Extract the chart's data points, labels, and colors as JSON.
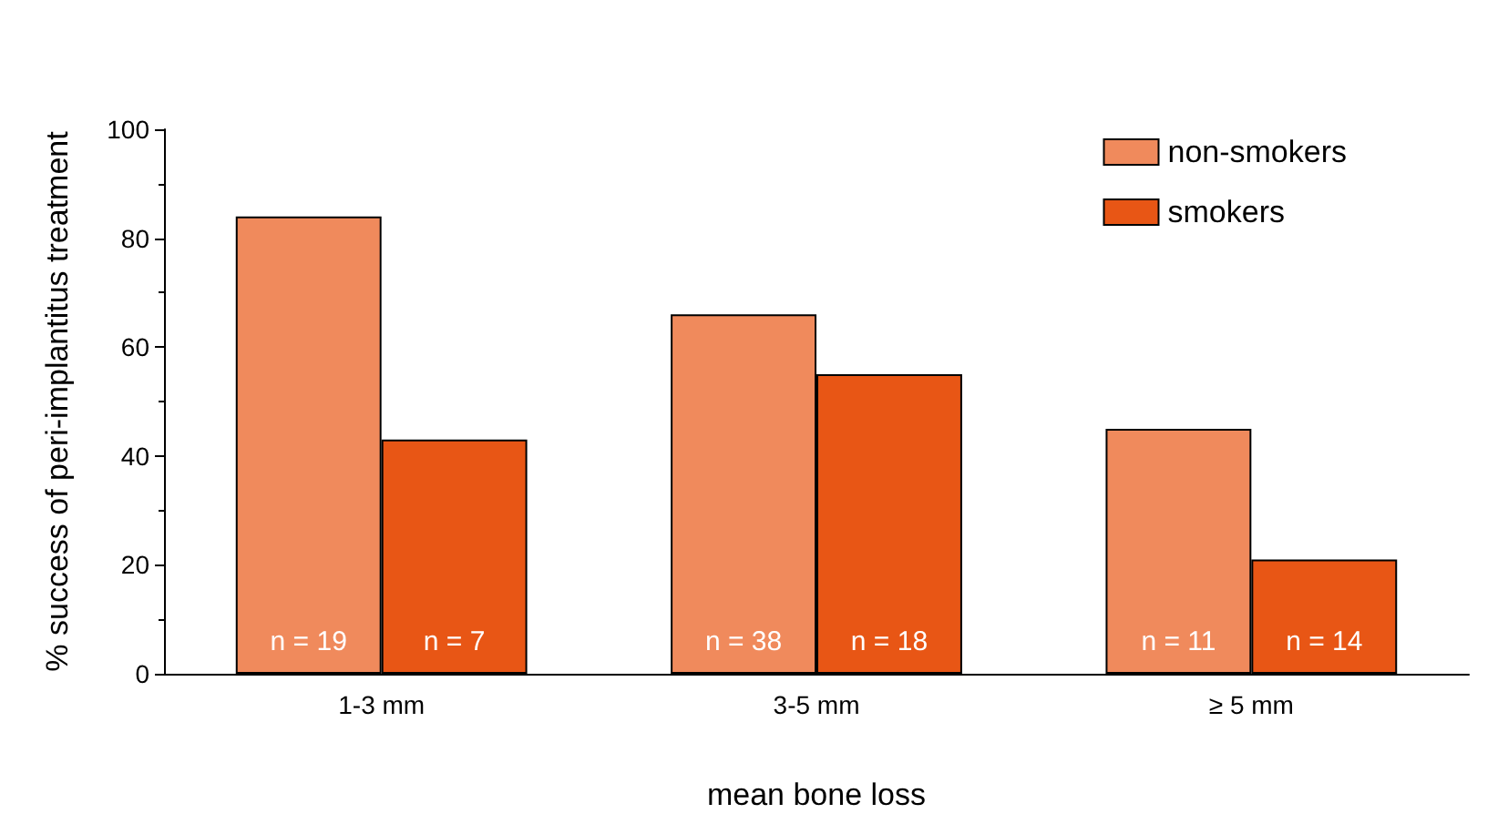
{
  "chart_data": {
    "type": "bar",
    "xlabel": "mean bone loss",
    "ylabel": "% success of peri-implantitus treatment",
    "categories": [
      "1-3 mm",
      "3-5 mm",
      "≥ 5 mm"
    ],
    "series": [
      {
        "name": "non-smokers",
        "color": "#f08a5c",
        "values": [
          84,
          66,
          45
        ]
      },
      {
        "name": "smokers",
        "color": "#e85615",
        "values": [
          43,
          55,
          21
        ]
      }
    ],
    "annotations": [
      {
        "text": "n = 19",
        "x": "1-3 mm",
        "y": 0
      },
      {
        "text": "n = 7",
        "x": "1-3 mm",
        "y": 0
      },
      {
        "text": "n = 38",
        "x": "3-5 mm",
        "y": 0
      },
      {
        "text": "n = 18",
        "x": "3-5 mm",
        "y": 0
      },
      {
        "text": "n = 11",
        "x": "≥ 5 mm",
        "y": 0
      },
      {
        "text": "n = 14",
        "x": "≥ 5 mm",
        "y": 0
      }
    ],
    "ylim": [
      0,
      100
    ],
    "yticks": [
      0,
      20,
      40,
      60,
      80,
      100
    ],
    "grid": false,
    "legend": "top right"
  }
}
